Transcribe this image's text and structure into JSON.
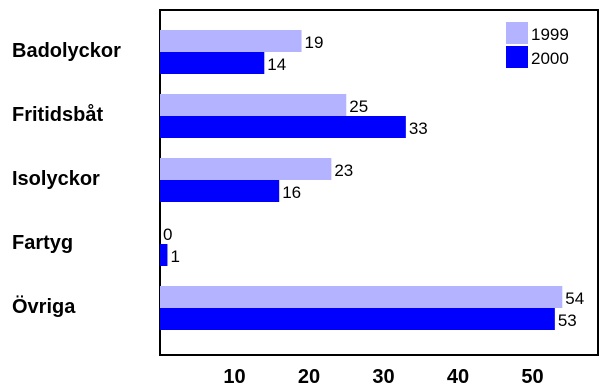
{
  "chart_data": {
    "type": "bar",
    "orientation": "horizontal",
    "categories": [
      "Badolyckor",
      "Fritidsbåt",
      "Isolyckor",
      "Fartyg",
      "Övriga"
    ],
    "series": [
      {
        "name": "1999",
        "values": [
          19,
          25,
          23,
          0,
          54
        ],
        "color": "#b3b3ff"
      },
      {
        "name": "2000",
        "values": [
          14,
          33,
          16,
          1,
          53
        ],
        "color": "#0000ff"
      }
    ],
    "x_ticks": [
      10,
      20,
      30,
      40,
      50
    ],
    "xlim": [
      0,
      58
    ],
    "grid": false,
    "legend_position": "top-right"
  }
}
